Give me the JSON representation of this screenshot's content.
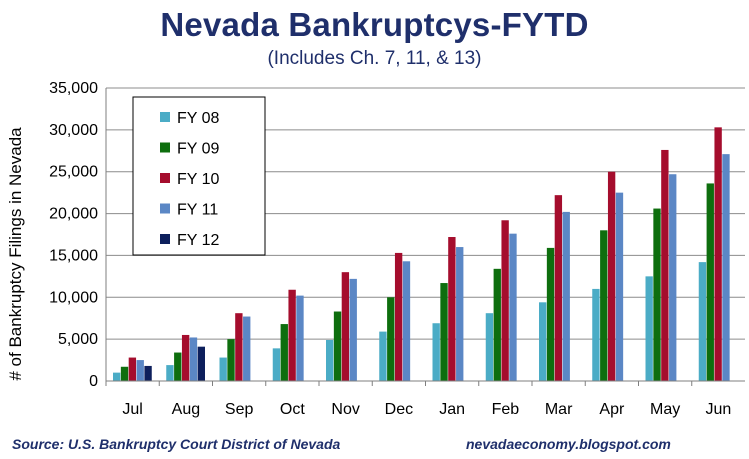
{
  "chart_data": {
    "type": "bar",
    "title": "Nevada Bankruptcys-FYTD",
    "subtitle": "(Includes Ch. 7, 11, & 13)",
    "ylabel": "# of Bankruptcy Filings in Nevada",
    "xlabel": "",
    "ylim": [
      0,
      35000
    ],
    "yticks": [
      "0",
      "5,000",
      "10,000",
      "15,000",
      "20,000",
      "25,000",
      "30,000",
      "35,000"
    ],
    "grid": true,
    "legend_position": "top-left",
    "categories": [
      "Jul",
      "Aug",
      "Sep",
      "Oct",
      "Nov",
      "Dec",
      "Jan",
      "Feb",
      "Mar",
      "Apr",
      "May",
      "Jun"
    ],
    "series": [
      {
        "name": "FY 08",
        "color": "#4bacc6",
        "values": [
          1000,
          1900,
          2800,
          3900,
          4900,
          5900,
          6900,
          8100,
          9400,
          11000,
          12500,
          14200
        ]
      },
      {
        "name": "FY 09",
        "color": "#0e6e0e",
        "values": [
          1700,
          3400,
          5000,
          6800,
          8300,
          10000,
          11700,
          13400,
          15900,
          18000,
          20600,
          23600
        ]
      },
      {
        "name": "FY 10",
        "color": "#a50d2d",
        "values": [
          2800,
          5500,
          8100,
          10900,
          13000,
          15300,
          17200,
          19200,
          22200,
          25000,
          27600,
          30300
        ]
      },
      {
        "name": "FY 11",
        "color": "#5b87c5",
        "values": [
          2500,
          5200,
          7700,
          10200,
          12200,
          14300,
          16000,
          17600,
          20200,
          22500,
          24700,
          27100
        ]
      },
      {
        "name": "FY 12",
        "color": "#0d1f5c",
        "values": [
          1800,
          4100,
          null,
          null,
          null,
          null,
          null,
          null,
          null,
          null,
          null,
          null
        ]
      }
    ]
  },
  "footer": {
    "source": "Source: U.S. Bankruptcy Court District of Nevada",
    "credit": "nevadaeconomy.blogspot.com"
  }
}
